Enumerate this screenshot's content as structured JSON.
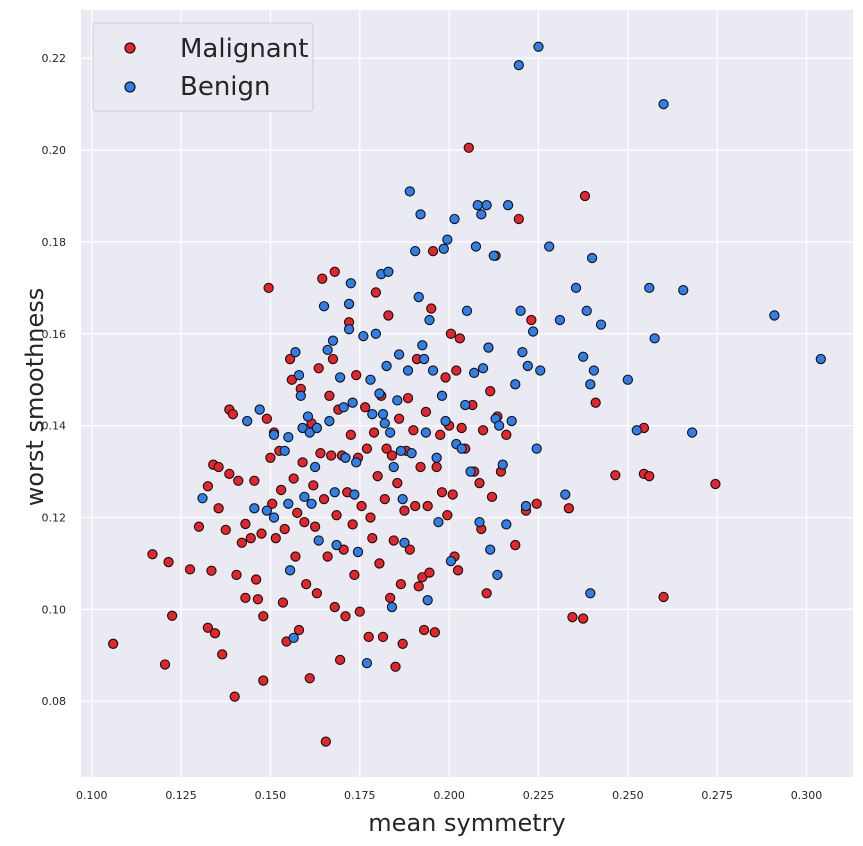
{
  "chart_data": {
    "type": "scatter",
    "title": "",
    "xlabel": "mean symmetry",
    "ylabel": "worst smoothness",
    "xlim": [
      0.097,
      0.313
    ],
    "ylim": [
      0.0635,
      0.2305
    ],
    "x_ticks": [
      0.1,
      0.125,
      0.15,
      0.175,
      0.2,
      0.225,
      0.25,
      0.275,
      0.3
    ],
    "x_tick_labels": [
      "0.100",
      "0.125",
      "0.150",
      "0.175",
      "0.200",
      "0.225",
      "0.250",
      "0.275",
      "0.300"
    ],
    "y_ticks": [
      0.08,
      0.1,
      0.12,
      0.14,
      0.16,
      0.18,
      0.2,
      0.22
    ],
    "y_tick_labels": [
      "0.08",
      "0.10",
      "0.12",
      "0.14",
      "0.16",
      "0.18",
      "0.20",
      "0.22"
    ],
    "grid": true,
    "legend_position": "top-left",
    "colors": {
      "plot_background": "#EAEAF2",
      "grid": "#FFFFFF",
      "malignant": "#E8242B",
      "benign": "#2F7FEA",
      "marker_edge": "#111111"
    },
    "series": [
      {
        "name": "Malignant",
        "color": "#E8242B",
        "points": [
          [
            0.106,
            0.0925
          ],
          [
            0.117,
            0.112
          ],
          [
            0.1205,
            0.088
          ],
          [
            0.1215,
            0.1103
          ],
          [
            0.1225,
            0.0986
          ],
          [
            0.1275,
            0.1087
          ],
          [
            0.13,
            0.118
          ],
          [
            0.1325,
            0.096
          ],
          [
            0.1325,
            0.1268
          ],
          [
            0.1335,
            0.1084
          ],
          [
            0.134,
            0.1315
          ],
          [
            0.1345,
            0.0948
          ],
          [
            0.1355,
            0.131
          ],
          [
            0.1355,
            0.122
          ],
          [
            0.1365,
            0.0902
          ],
          [
            0.1375,
            0.1173
          ],
          [
            0.1385,
            0.1435
          ],
          [
            0.1385,
            0.1295
          ],
          [
            0.1395,
            0.1425
          ],
          [
            0.14,
            0.081
          ],
          [
            0.1405,
            0.1075
          ],
          [
            0.141,
            0.128
          ],
          [
            0.142,
            0.1145
          ],
          [
            0.143,
            0.1186
          ],
          [
            0.143,
            0.1025
          ],
          [
            0.1445,
            0.1155
          ],
          [
            0.1455,
            0.128
          ],
          [
            0.146,
            0.1065
          ],
          [
            0.1465,
            0.1022
          ],
          [
            0.1475,
            0.1165
          ],
          [
            0.148,
            0.0845
          ],
          [
            0.148,
            0.0985
          ],
          [
            0.149,
            0.1415
          ],
          [
            0.1495,
            0.17
          ],
          [
            0.15,
            0.133
          ],
          [
            0.1505,
            0.123
          ],
          [
            0.151,
            0.1385
          ],
          [
            0.1515,
            0.1155
          ],
          [
            0.1525,
            0.1345
          ],
          [
            0.153,
            0.126
          ],
          [
            0.1535,
            0.1015
          ],
          [
            0.154,
            0.1175
          ],
          [
            0.1545,
            0.093
          ],
          [
            0.1555,
            0.1545
          ],
          [
            0.156,
            0.15
          ],
          [
            0.1565,
            0.1285
          ],
          [
            0.157,
            0.1115
          ],
          [
            0.1575,
            0.121
          ],
          [
            0.158,
            0.0955
          ],
          [
            0.1585,
            0.148
          ],
          [
            0.159,
            0.132
          ],
          [
            0.1595,
            0.119
          ],
          [
            0.16,
            0.1055
          ],
          [
            0.161,
            0.085
          ],
          [
            0.1615,
            0.1405
          ],
          [
            0.162,
            0.127
          ],
          [
            0.1625,
            0.118
          ],
          [
            0.163,
            0.1035
          ],
          [
            0.1635,
            0.1525
          ],
          [
            0.164,
            0.134
          ],
          [
            0.1645,
            0.172
          ],
          [
            0.165,
            0.124
          ],
          [
            0.1655,
            0.0712
          ],
          [
            0.166,
            0.1115
          ],
          [
            0.1665,
            0.1465
          ],
          [
            0.167,
            0.1335
          ],
          [
            0.1675,
            0.1545
          ],
          [
            0.168,
            0.1735
          ],
          [
            0.168,
            0.1005
          ],
          [
            0.1685,
            0.1205
          ],
          [
            0.169,
            0.1435
          ],
          [
            0.1695,
            0.089
          ],
          [
            0.17,
            0.1335
          ],
          [
            0.1705,
            0.113
          ],
          [
            0.171,
            0.0985
          ],
          [
            0.1715,
            0.1255
          ],
          [
            0.172,
            0.1625
          ],
          [
            0.1725,
            0.138
          ],
          [
            0.173,
            0.1185
          ],
          [
            0.1735,
            0.1075
          ],
          [
            0.174,
            0.151
          ],
          [
            0.1745,
            0.133
          ],
          [
            0.175,
            0.0995
          ],
          [
            0.1755,
            0.1225
          ],
          [
            0.1765,
            0.144
          ],
          [
            0.177,
            0.135
          ],
          [
            0.1775,
            0.094
          ],
          [
            0.178,
            0.12
          ],
          [
            0.1785,
            0.1155
          ],
          [
            0.179,
            0.1385
          ],
          [
            0.1795,
            0.169
          ],
          [
            0.18,
            0.129
          ],
          [
            0.1805,
            0.11
          ],
          [
            0.181,
            0.1465
          ],
          [
            0.1815,
            0.094
          ],
          [
            0.182,
            0.124
          ],
          [
            0.1825,
            0.135
          ],
          [
            0.183,
            0.164
          ],
          [
            0.1835,
            0.1025
          ],
          [
            0.184,
            0.1335
          ],
          [
            0.1845,
            0.115
          ],
          [
            0.185,
            0.0875
          ],
          [
            0.1855,
            0.1275
          ],
          [
            0.186,
            0.1415
          ],
          [
            0.1865,
            0.1055
          ],
          [
            0.187,
            0.0925
          ],
          [
            0.1875,
            0.1215
          ],
          [
            0.188,
            0.1345
          ],
          [
            0.1885,
            0.146
          ],
          [
            0.189,
            0.113
          ],
          [
            0.19,
            0.139
          ],
          [
            0.1905,
            0.1225
          ],
          [
            0.191,
            0.1545
          ],
          [
            0.1915,
            0.105
          ],
          [
            0.192,
            0.131
          ],
          [
            0.1925,
            0.107
          ],
          [
            0.193,
            0.0955
          ],
          [
            0.1935,
            0.143
          ],
          [
            0.194,
            0.1225
          ],
          [
            0.1945,
            0.108
          ],
          [
            0.195,
            0.1655
          ],
          [
            0.1955,
            0.178
          ],
          [
            0.196,
            0.095
          ],
          [
            0.1965,
            0.131
          ],
          [
            0.1975,
            0.138
          ],
          [
            0.198,
            0.1255
          ],
          [
            0.199,
            0.1505
          ],
          [
            0.1995,
            0.1205
          ],
          [
            0.2,
            0.14
          ],
          [
            0.2005,
            0.16
          ],
          [
            0.201,
            0.125
          ],
          [
            0.2015,
            0.1115
          ],
          [
            0.202,
            0.152
          ],
          [
            0.2025,
            0.1085
          ],
          [
            0.203,
            0.159
          ],
          [
            0.2035,
            0.1395
          ],
          [
            0.2045,
            0.135
          ],
          [
            0.2055,
            0.2005
          ],
          [
            0.2065,
            0.1445
          ],
          [
            0.207,
            0.13
          ],
          [
            0.2085,
            0.1275
          ],
          [
            0.209,
            0.1175
          ],
          [
            0.2095,
            0.139
          ],
          [
            0.2105,
            0.1035
          ],
          [
            0.2115,
            0.1475
          ],
          [
            0.212,
            0.1245
          ],
          [
            0.213,
            0.177
          ],
          [
            0.2135,
            0.142
          ],
          [
            0.2145,
            0.13
          ],
          [
            0.216,
            0.138
          ],
          [
            0.2185,
            0.114
          ],
          [
            0.2195,
            0.185
          ],
          [
            0.2215,
            0.1215
          ],
          [
            0.223,
            0.163
          ],
          [
            0.2245,
            0.123
          ],
          [
            0.2335,
            0.122
          ],
          [
            0.2345,
            0.0983
          ],
          [
            0.2375,
            0.098
          ],
          [
            0.238,
            0.19
          ],
          [
            0.241,
            0.145
          ],
          [
            0.2465,
            0.1292
          ],
          [
            0.2545,
            0.1395
          ],
          [
            0.2545,
            0.1295
          ],
          [
            0.256,
            0.129
          ],
          [
            0.26,
            0.1027
          ],
          [
            0.2745,
            0.1273
          ]
        ]
      },
      {
        "name": "Benign",
        "color": "#2F7FEA",
        "points": [
          [
            0.131,
            0.1242
          ],
          [
            0.1435,
            0.141
          ],
          [
            0.1455,
            0.122
          ],
          [
            0.147,
            0.1435
          ],
          [
            0.149,
            0.1215
          ],
          [
            0.151,
            0.12
          ],
          [
            0.151,
            0.138
          ],
          [
            0.154,
            0.1345
          ],
          [
            0.155,
            0.1375
          ],
          [
            0.155,
            0.123
          ],
          [
            0.1555,
            0.1085
          ],
          [
            0.1565,
            0.0938
          ],
          [
            0.157,
            0.156
          ],
          [
            0.158,
            0.151
          ],
          [
            0.1585,
            0.1465
          ],
          [
            0.159,
            0.1395
          ],
          [
            0.1595,
            0.1245
          ],
          [
            0.1605,
            0.142
          ],
          [
            0.161,
            0.1385
          ],
          [
            0.1615,
            0.123
          ],
          [
            0.1625,
            0.131
          ],
          [
            0.163,
            0.1395
          ],
          [
            0.1635,
            0.115
          ],
          [
            0.165,
            0.166
          ],
          [
            0.166,
            0.1565
          ],
          [
            0.1665,
            0.141
          ],
          [
            0.1675,
            0.1585
          ],
          [
            0.168,
            0.1255
          ],
          [
            0.1685,
            0.114
          ],
          [
            0.1695,
            0.1505
          ],
          [
            0.1705,
            0.144
          ],
          [
            0.171,
            0.133
          ],
          [
            0.172,
            0.161
          ],
          [
            0.172,
            0.1665
          ],
          [
            0.1725,
            0.171
          ],
          [
            0.173,
            0.145
          ],
          [
            0.1735,
            0.125
          ],
          [
            0.174,
            0.132
          ],
          [
            0.1745,
            0.1125
          ],
          [
            0.176,
            0.1595
          ],
          [
            0.177,
            0.0883
          ],
          [
            0.178,
            0.15
          ],
          [
            0.1785,
            0.1425
          ],
          [
            0.1795,
            0.16
          ],
          [
            0.1805,
            0.147
          ],
          [
            0.181,
            0.173
          ],
          [
            0.1815,
            0.1425
          ],
          [
            0.182,
            0.1405
          ],
          [
            0.1825,
            0.153
          ],
          [
            0.183,
            0.1735
          ],
          [
            0.1835,
            0.1385
          ],
          [
            0.184,
            0.1005
          ],
          [
            0.1845,
            0.131
          ],
          [
            0.1855,
            0.1455
          ],
          [
            0.186,
            0.1555
          ],
          [
            0.1865,
            0.1345
          ],
          [
            0.187,
            0.124
          ],
          [
            0.1875,
            0.1145
          ],
          [
            0.1885,
            0.152
          ],
          [
            0.189,
            0.191
          ],
          [
            0.1895,
            0.134
          ],
          [
            0.1905,
            0.178
          ],
          [
            0.1915,
            0.168
          ],
          [
            0.192,
            0.186
          ],
          [
            0.1925,
            0.1575
          ],
          [
            0.193,
            0.1545
          ],
          [
            0.1935,
            0.1385
          ],
          [
            0.194,
            0.102
          ],
          [
            0.1945,
            0.163
          ],
          [
            0.1955,
            0.152
          ],
          [
            0.1965,
            0.133
          ],
          [
            0.197,
            0.119
          ],
          [
            0.198,
            0.1465
          ],
          [
            0.1985,
            0.1785
          ],
          [
            0.199,
            0.141
          ],
          [
            0.1995,
            0.1805
          ],
          [
            0.2005,
            0.1105
          ],
          [
            0.2015,
            0.185
          ],
          [
            0.202,
            0.136
          ],
          [
            0.2035,
            0.135
          ],
          [
            0.2045,
            0.1445
          ],
          [
            0.205,
            0.165
          ],
          [
            0.206,
            0.13
          ],
          [
            0.207,
            0.1515
          ],
          [
            0.2075,
            0.179
          ],
          [
            0.208,
            0.188
          ],
          [
            0.2085,
            0.119
          ],
          [
            0.209,
            0.186
          ],
          [
            0.2095,
            0.1525
          ],
          [
            0.2105,
            0.188
          ],
          [
            0.211,
            0.157
          ],
          [
            0.2115,
            0.113
          ],
          [
            0.2125,
            0.177
          ],
          [
            0.213,
            0.1415
          ],
          [
            0.2135,
            0.1075
          ],
          [
            0.214,
            0.14
          ],
          [
            0.215,
            0.1315
          ],
          [
            0.216,
            0.1185
          ],
          [
            0.2165,
            0.188
          ],
          [
            0.2175,
            0.141
          ],
          [
            0.2185,
            0.149
          ],
          [
            0.2195,
            0.2185
          ],
          [
            0.22,
            0.165
          ],
          [
            0.2205,
            0.156
          ],
          [
            0.2215,
            0.1225
          ],
          [
            0.222,
            0.153
          ],
          [
            0.2235,
            0.1605
          ],
          [
            0.2245,
            0.135
          ],
          [
            0.225,
            0.2225
          ],
          [
            0.2255,
            0.152
          ],
          [
            0.228,
            0.179
          ],
          [
            0.231,
            0.163
          ],
          [
            0.2325,
            0.125
          ],
          [
            0.2355,
            0.17
          ],
          [
            0.2375,
            0.155
          ],
          [
            0.2385,
            0.165
          ],
          [
            0.2395,
            0.149
          ],
          [
            0.24,
            0.1765
          ],
          [
            0.2395,
            0.1035
          ],
          [
            0.2405,
            0.152
          ],
          [
            0.2425,
            0.162
          ],
          [
            0.25,
            0.15
          ],
          [
            0.2525,
            0.139
          ],
          [
            0.256,
            0.17
          ],
          [
            0.2575,
            0.159
          ],
          [
            0.26,
            0.21
          ],
          [
            0.2655,
            0.1695
          ],
          [
            0.268,
            0.1385
          ],
          [
            0.291,
            0.164
          ],
          [
            0.304,
            0.1545
          ]
        ]
      }
    ]
  }
}
